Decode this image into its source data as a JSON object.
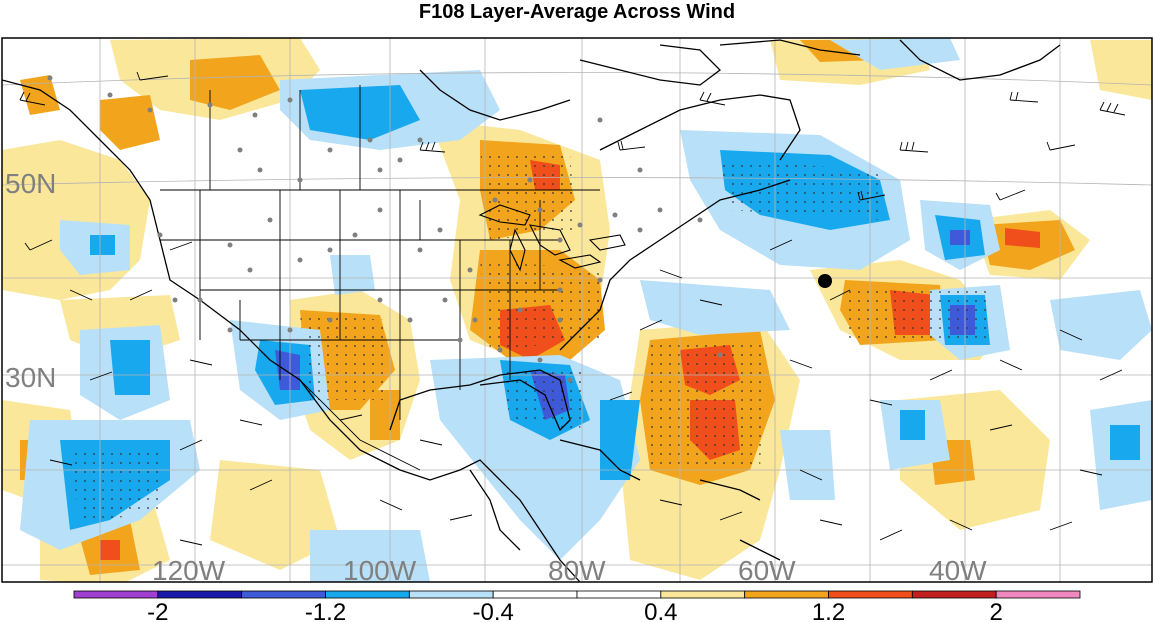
{
  "title": "F108 Layer-Average Across Wind",
  "map": {
    "lat_labels": [
      "50N",
      "30N"
    ],
    "lon_labels": [
      "120W",
      "100W",
      "80W",
      "60W",
      "40W"
    ],
    "grid": true
  },
  "colorbar": {
    "colors": [
      "#a040d0",
      "#1a1aa8",
      "#3f5ad8",
      "#18a8ee",
      "#b8e0f8",
      "#ffffff",
      "#ffffff",
      "#fbe79a",
      "#f2a51c",
      "#f04e1a",
      "#c02020",
      "#f088c0"
    ],
    "tick_labels": [
      "-2",
      "-1.2",
      "-0.4",
      "0.4",
      "1.2",
      "2"
    ]
  },
  "marker": "black-dot"
}
